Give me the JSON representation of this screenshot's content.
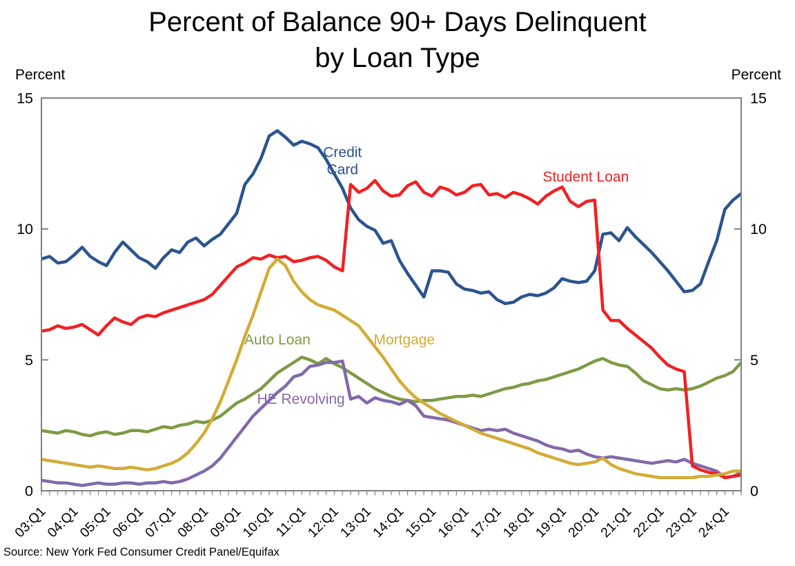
{
  "title": {
    "line1": "Percent of Balance 90+ Days Delinquent",
    "line2": "by Loan Type"
  },
  "y_axis": {
    "unit_left": "Percent",
    "unit_right": "Percent",
    "ticks": [
      0,
      5,
      10,
      15
    ]
  },
  "source_note": "Source: New York Fed Consumer Credit Panel/Equifax",
  "colors": {
    "credit_card": "#2a5490",
    "student_loan": "#f02124",
    "mortgage": "#d2ac34",
    "auto_loan": "#7d9b44",
    "he_revolving": "#8269aa",
    "axis_frame": "#808080",
    "text": "#000000"
  },
  "chart_data": {
    "type": "line",
    "title": "Percent of Balance 90+ Days Delinquent by Loan Type",
    "ylabel": "Percent",
    "ylim": [
      0,
      15
    ],
    "grid": "off",
    "legend": "inline-annotations",
    "x_start": "03:Q1",
    "x_end": "24:Q3",
    "x_tick_labels": [
      "03:Q1",
      "04:Q1",
      "05:Q1",
      "06:Q1",
      "07:Q1",
      "08:Q1",
      "09:Q1",
      "10:Q1",
      "11:Q1",
      "12:Q1",
      "13:Q1",
      "14:Q1",
      "15:Q1",
      "16:Q1",
      "17:Q1",
      "18:Q1",
      "19:Q1",
      "20:Q1",
      "21:Q1",
      "22:Q1",
      "23:Q1",
      "24:Q1"
    ],
    "categories": [
      "03:Q1",
      "03:Q2",
      "03:Q3",
      "03:Q4",
      "04:Q1",
      "04:Q2",
      "04:Q3",
      "04:Q4",
      "05:Q1",
      "05:Q2",
      "05:Q3",
      "05:Q4",
      "06:Q1",
      "06:Q2",
      "06:Q3",
      "06:Q4",
      "07:Q1",
      "07:Q2",
      "07:Q3",
      "07:Q4",
      "08:Q1",
      "08:Q2",
      "08:Q3",
      "08:Q4",
      "09:Q1",
      "09:Q2",
      "09:Q3",
      "09:Q4",
      "10:Q1",
      "10:Q2",
      "10:Q3",
      "10:Q4",
      "11:Q1",
      "11:Q2",
      "11:Q3",
      "11:Q4",
      "12:Q1",
      "12:Q2",
      "12:Q3",
      "12:Q4",
      "13:Q1",
      "13:Q2",
      "13:Q3",
      "13:Q4",
      "14:Q1",
      "14:Q2",
      "14:Q3",
      "14:Q4",
      "15:Q1",
      "15:Q2",
      "15:Q3",
      "15:Q4",
      "16:Q1",
      "16:Q2",
      "16:Q3",
      "16:Q4",
      "17:Q1",
      "17:Q2",
      "17:Q3",
      "17:Q4",
      "18:Q1",
      "18:Q2",
      "18:Q3",
      "18:Q4",
      "19:Q1",
      "19:Q2",
      "19:Q3",
      "19:Q4",
      "20:Q1",
      "20:Q2",
      "20:Q3",
      "20:Q4",
      "21:Q1",
      "21:Q2",
      "21:Q3",
      "21:Q4",
      "22:Q1",
      "22:Q2",
      "22:Q3",
      "22:Q4",
      "23:Q1",
      "23:Q2",
      "23:Q3",
      "23:Q4",
      "24:Q1",
      "24:Q2",
      "24:Q3"
    ],
    "series": [
      {
        "name": "Credit Card",
        "color": "#2a5490",
        "values": [
          8.85,
          8.95,
          8.7,
          8.75,
          9.0,
          9.3,
          8.95,
          8.75,
          8.6,
          9.1,
          9.5,
          9.2,
          8.9,
          8.75,
          8.5,
          8.9,
          9.2,
          9.1,
          9.5,
          9.65,
          9.35,
          9.6,
          9.8,
          10.2,
          10.6,
          11.7,
          12.1,
          12.7,
          13.55,
          13.75,
          13.5,
          13.2,
          13.35,
          13.25,
          13.1,
          12.65,
          12.1,
          11.55,
          10.8,
          10.35,
          10.1,
          9.95,
          9.45,
          9.55,
          8.8,
          8.3,
          7.85,
          7.4,
          8.4,
          8.4,
          8.35,
          7.9,
          7.7,
          7.65,
          7.55,
          7.6,
          7.3,
          7.15,
          7.2,
          7.4,
          7.5,
          7.45,
          7.55,
          7.75,
          8.1,
          8.0,
          7.95,
          8.0,
          8.4,
          9.8,
          9.85,
          9.55,
          10.05,
          9.7,
          9.4,
          9.1,
          8.75,
          8.4,
          8.0,
          7.6,
          7.65,
          7.9,
          8.75,
          9.55,
          10.75,
          11.1,
          11.35
        ]
      },
      {
        "name": "Auto Loan",
        "color": "#7d9b44",
        "values": [
          2.3,
          2.25,
          2.2,
          2.3,
          2.25,
          2.15,
          2.1,
          2.2,
          2.25,
          2.15,
          2.2,
          2.3,
          2.3,
          2.25,
          2.35,
          2.45,
          2.4,
          2.5,
          2.55,
          2.65,
          2.6,
          2.7,
          2.85,
          3.1,
          3.35,
          3.5,
          3.7,
          3.9,
          4.2,
          4.5,
          4.7,
          4.9,
          5.1,
          5.0,
          4.85,
          5.05,
          4.85,
          4.7,
          4.5,
          4.3,
          4.1,
          3.9,
          3.75,
          3.6,
          3.5,
          3.45,
          3.4,
          3.45,
          3.45,
          3.5,
          3.55,
          3.6,
          3.6,
          3.65,
          3.6,
          3.7,
          3.8,
          3.9,
          3.95,
          4.05,
          4.1,
          4.2,
          4.25,
          4.35,
          4.45,
          4.55,
          4.65,
          4.8,
          4.95,
          5.05,
          4.9,
          4.8,
          4.75,
          4.5,
          4.2,
          4.05,
          3.9,
          3.85,
          3.9,
          3.85,
          3.9,
          4.0,
          4.15,
          4.3,
          4.4,
          4.55,
          4.9
        ]
      },
      {
        "name": "HE Revolving",
        "color": "#8269aa",
        "values": [
          0.4,
          0.35,
          0.3,
          0.3,
          0.25,
          0.2,
          0.25,
          0.3,
          0.25,
          0.25,
          0.3,
          0.3,
          0.25,
          0.3,
          0.3,
          0.35,
          0.3,
          0.35,
          0.45,
          0.6,
          0.75,
          0.95,
          1.25,
          1.65,
          2.05,
          2.45,
          2.85,
          3.15,
          3.45,
          3.75,
          4.0,
          4.35,
          4.45,
          4.75,
          4.8,
          4.9,
          4.9,
          4.95,
          3.5,
          3.6,
          3.35,
          3.55,
          3.45,
          3.4,
          3.3,
          3.45,
          3.25,
          2.85,
          2.8,
          2.75,
          2.7,
          2.6,
          2.5,
          2.4,
          2.3,
          2.35,
          2.3,
          2.35,
          2.2,
          2.1,
          2.0,
          1.9,
          1.75,
          1.65,
          1.6,
          1.5,
          1.55,
          1.4,
          1.3,
          1.25,
          1.3,
          1.25,
          1.2,
          1.15,
          1.1,
          1.05,
          1.1,
          1.15,
          1.1,
          1.2,
          1.05,
          0.95,
          0.85,
          0.75,
          0.5,
          0.55,
          0.7
        ]
      },
      {
        "name": "Student Loan",
        "color": "#f02124",
        "values": [
          6.1,
          6.15,
          6.3,
          6.2,
          6.25,
          6.35,
          6.15,
          5.95,
          6.3,
          6.6,
          6.45,
          6.35,
          6.6,
          6.7,
          6.65,
          6.8,
          6.9,
          7.0,
          7.1,
          7.2,
          7.3,
          7.5,
          7.85,
          8.2,
          8.55,
          8.7,
          8.9,
          8.85,
          9.0,
          8.9,
          8.95,
          8.75,
          8.8,
          8.9,
          8.95,
          8.8,
          8.55,
          8.4,
          11.7,
          11.4,
          11.55,
          11.85,
          11.45,
          11.25,
          11.3,
          11.65,
          11.8,
          11.4,
          11.25,
          11.6,
          11.5,
          11.3,
          11.4,
          11.65,
          11.7,
          11.3,
          11.35,
          11.2,
          11.4,
          11.3,
          11.15,
          10.95,
          11.25,
          11.45,
          11.6,
          11.05,
          10.85,
          11.05,
          11.1,
          6.9,
          6.5,
          6.5,
          6.2,
          5.95,
          5.7,
          5.45,
          5.1,
          4.8,
          4.65,
          4.55,
          0.95,
          0.8,
          0.7,
          0.65,
          0.5,
          0.55,
          0.6
        ]
      },
      {
        "name": "Mortgage",
        "color": "#d2ac34",
        "values": [
          1.2,
          1.15,
          1.1,
          1.05,
          1.0,
          0.95,
          0.9,
          0.95,
          0.9,
          0.85,
          0.85,
          0.9,
          0.85,
          0.8,
          0.85,
          0.95,
          1.05,
          1.2,
          1.45,
          1.8,
          2.2,
          2.75,
          3.4,
          4.2,
          5.0,
          5.9,
          6.7,
          7.6,
          8.5,
          8.85,
          8.6,
          8.0,
          7.6,
          7.3,
          7.1,
          7.0,
          6.9,
          6.7,
          6.5,
          6.3,
          5.9,
          5.5,
          5.1,
          4.65,
          4.2,
          3.85,
          3.55,
          3.35,
          3.15,
          2.95,
          2.8,
          2.65,
          2.5,
          2.35,
          2.2,
          2.1,
          2.0,
          1.9,
          1.8,
          1.7,
          1.6,
          1.45,
          1.35,
          1.25,
          1.15,
          1.05,
          1.0,
          1.05,
          1.1,
          1.25,
          1.0,
          0.85,
          0.75,
          0.65,
          0.6,
          0.55,
          0.5,
          0.5,
          0.5,
          0.5,
          0.5,
          0.55,
          0.55,
          0.6,
          0.65,
          0.75,
          0.75
        ]
      }
    ],
    "annotations": [
      {
        "text": "Credit\nCard",
        "series": "Credit Card",
        "x_index": 37.0,
        "value": 12.6,
        "color": "#2a5490"
      },
      {
        "text": "Student Loan",
        "series": "Student Loan",
        "x_index": 66.9,
        "value": 12.0,
        "color": "#f02124"
      },
      {
        "text": "Auto Loan",
        "series": "Auto Loan",
        "x_index": 29.0,
        "value": 5.77,
        "color": "#7d9b44"
      },
      {
        "text": "Mortgage",
        "series": "Mortgage",
        "x_index": 44.6,
        "value": 5.77,
        "color": "#d2ac34"
      },
      {
        "text": "HE Revolving",
        "series": "HE Revolving",
        "x_index": 31.9,
        "value": 3.5,
        "color": "#8269aa"
      }
    ]
  }
}
